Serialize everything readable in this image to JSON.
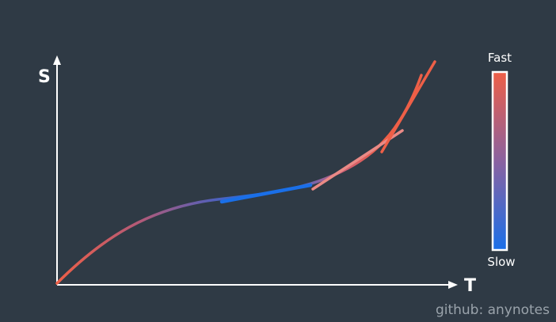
{
  "axes": {
    "y_label": "S",
    "x_label": "T"
  },
  "legend": {
    "high_label": "Fast",
    "low_label": "Slow"
  },
  "credit": "github: anynotes",
  "colors": {
    "background": "#2f3a45",
    "axis": "#ffffff",
    "fast": "#ee5f47",
    "slow": "#1a6fe8",
    "credit": "#9aa3ab"
  }
}
